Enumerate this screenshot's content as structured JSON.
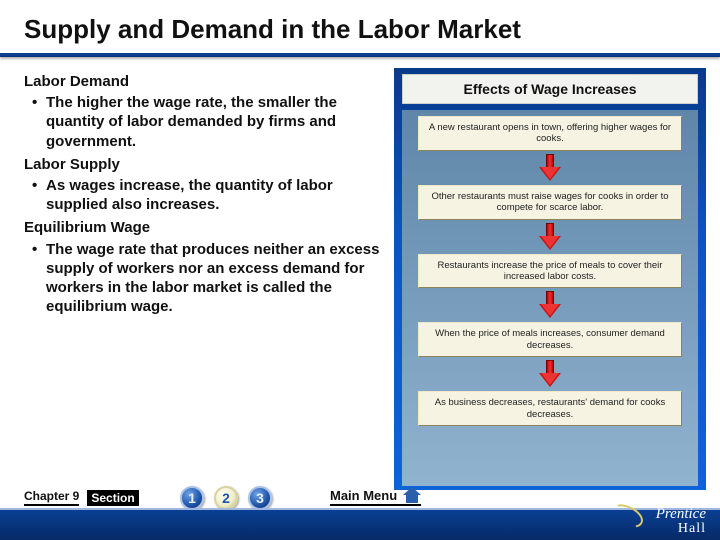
{
  "title": "Supply and Demand in the Labor Market",
  "colors": {
    "title_underline": "#0b3d91",
    "right_panel_grad_top": "#083a8a",
    "right_panel_grad_bot": "#0f63d8",
    "flow_bg_top": "#5f86a9",
    "flow_bg_bot": "#90b3cf",
    "step_bg": "#f6f3e2",
    "arrow_fill": "#c11a1a",
    "footer_grad_top": "#0a3f94",
    "footer_grad_bot": "#062a66",
    "numdot_inactive": "#1e54a8",
    "numdot_active_bg": "#f0eec8",
    "logo_ring": "#d9c96a"
  },
  "left": {
    "h1": "Labor Demand",
    "b1": "The higher the wage rate, the smaller the quantity of labor demanded by firms and government.",
    "h2": "Labor Supply",
    "b2": "As wages increase, the quantity of labor supplied also increases.",
    "h3": "Equilibrium Wage",
    "b3": "The wage rate that produces neither an excess supply of workers nor an excess demand for workers in the labor market is called the equilibrium wage."
  },
  "right": {
    "title": "Effects of Wage Increases",
    "steps": [
      "A new restaurant opens in town, offering higher wages for cooks.",
      "Other restaurants must raise wages for cooks in order to compete for scarce labor.",
      "Restaurants increase the price of meals to cover their increased labor costs.",
      "When the price of meals increases, consumer demand decreases.",
      "As business decreases, restaurants' demand for cooks decreases."
    ]
  },
  "footer": {
    "chapter": "Chapter 9",
    "section": "Section",
    "nums": [
      "1",
      "2",
      "3"
    ],
    "active_index": 1,
    "main_menu": "Main Menu",
    "logo_brand": "Prentice",
    "logo_hall": "Hall"
  },
  "typography": {
    "title_pt": 26,
    "body_pt": 15,
    "right_title_pt": 14,
    "step_pt": 9.5,
    "footer_pt": 12
  }
}
